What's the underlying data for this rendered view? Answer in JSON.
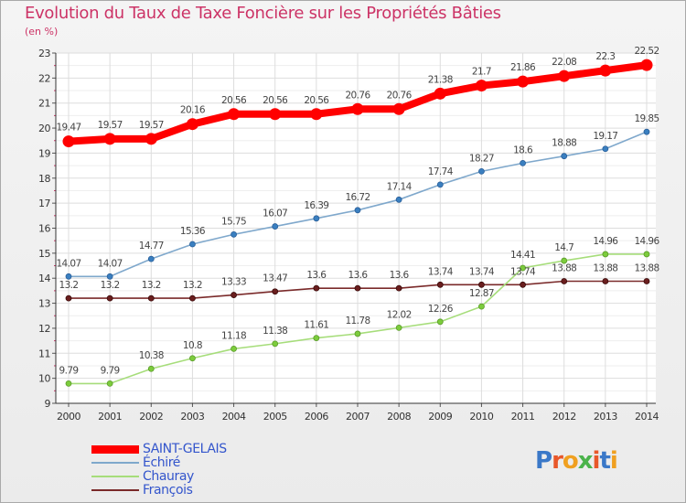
{
  "title": "Evolution du Taux de Taxe Foncière sur les Propriétés Bâties",
  "unit_label": "(en %)",
  "logo": {
    "text": "Proxiti",
    "letters": [
      {
        "ch": "P",
        "color": "#3a78c8"
      },
      {
        "ch": "r",
        "color": "#e8572a"
      },
      {
        "ch": "o",
        "color": "#f0a020"
      },
      {
        "ch": "x",
        "color": "#4bb34b"
      },
      {
        "ch": "i",
        "color": "#e8572a"
      },
      {
        "ch": "t",
        "color": "#3a78c8"
      },
      {
        "ch": "i",
        "color": "#f0a020"
      }
    ]
  },
  "chart_data": {
    "type": "line",
    "title": "Evolution du Taux de Taxe Foncière sur les Propriétés Bâties",
    "ylabel": "(en %)",
    "xlabel": "",
    "x": [
      "2000",
      "2001",
      "2002",
      "2003",
      "2004",
      "2005",
      "2006",
      "2007",
      "2008",
      "2009",
      "2010",
      "2011",
      "2012",
      "2013",
      "2014"
    ],
    "ylim": [
      9,
      23
    ],
    "yticks": [
      "9",
      "10",
      "11",
      "12",
      "13",
      "14",
      "15",
      "16",
      "17",
      "18",
      "19",
      "20",
      "21",
      "22",
      "23"
    ],
    "grid": true,
    "legend_position": "bottom-left",
    "series": [
      {
        "name": "SAINT-GELAIS",
        "color": "#ff0000",
        "marker": "#ff0000",
        "values": [
          19.47,
          19.57,
          19.57,
          20.16,
          20.56,
          20.56,
          20.56,
          20.76,
          20.76,
          21.38,
          21.7,
          21.86,
          22.08,
          22.3,
          22.52
        ],
        "labels": [
          "19.47",
          "19.57",
          "19.57",
          "20.16",
          "20.56",
          "20.56",
          "20.56",
          "20.76",
          "20.76",
          "21.38",
          "21.7",
          "21.86",
          "22.08",
          "22.3",
          "22.52"
        ]
      },
      {
        "name": "Échiré",
        "color": "#7fa8cc",
        "marker": "#3a7fc0",
        "values": [
          14.07,
          14.07,
          14.77,
          15.36,
          15.75,
          16.07,
          16.39,
          16.72,
          17.14,
          17.74,
          18.27,
          18.6,
          18.88,
          19.17,
          19.85
        ],
        "labels": [
          "14.07",
          "14.07",
          "14.77",
          "15.36",
          "15.75",
          "16.07",
          "16.39",
          "16.72",
          "17.14",
          "17.74",
          "18.27",
          "18.6",
          "18.88",
          "19.17",
          "19.85"
        ]
      },
      {
        "name": "Chauray",
        "color": "#a6dd7a",
        "marker": "#7ccc3c",
        "values": [
          9.79,
          9.79,
          10.38,
          10.8,
          11.18,
          11.38,
          11.61,
          11.78,
          12.02,
          12.26,
          12.87,
          14.41,
          14.7,
          14.96,
          14.96
        ],
        "labels": [
          "9.79",
          "9.79",
          "10.38",
          "10.8",
          "11.18",
          "11.38",
          "11.61",
          "11.78",
          "12.02",
          "12.26",
          "12.87",
          "14.41",
          "14.7",
          "14.96",
          "14.96"
        ]
      },
      {
        "name": "François",
        "color": "#7a2a2a",
        "marker": "#6a1e1e",
        "values": [
          13.2,
          13.2,
          13.2,
          13.2,
          13.33,
          13.47,
          13.6,
          13.6,
          13.6,
          13.74,
          13.74,
          13.74,
          13.88,
          13.88,
          13.88
        ],
        "labels": [
          "13.2",
          "13.2",
          "13.2",
          "13.2",
          "13.33",
          "13.47",
          "13.6",
          "13.6",
          "13.6",
          "13.74",
          "13.74",
          "13.74",
          "13.88",
          "13.88",
          "13.88"
        ]
      }
    ]
  }
}
